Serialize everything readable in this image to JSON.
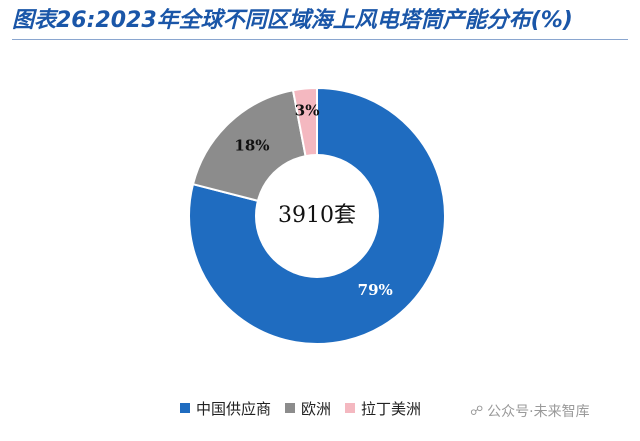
{
  "title": "图表26:2023年全球不同区域海上风电塔筒产能分布(%)",
  "watermark": {
    "text": "公众号·未来智库",
    "icon": "wechat-icon"
  },
  "colors": {
    "title": "#1a56a8",
    "rule": "#8aa6cf"
  },
  "chart_data": {
    "type": "pie",
    "subtype": "donut",
    "center_label": "3910套",
    "categories": [
      "中国供应商",
      "欧洲",
      "拉丁美洲"
    ],
    "values": [
      79,
      18,
      3
    ],
    "data_labels": [
      "79%",
      "18%",
      "3%"
    ],
    "colors": [
      "#1f6cc0",
      "#8c8c8c",
      "#f4b8c0"
    ],
    "legend_position": "bottom",
    "start_angle": "12 o'clock",
    "direction": "clockwise"
  }
}
